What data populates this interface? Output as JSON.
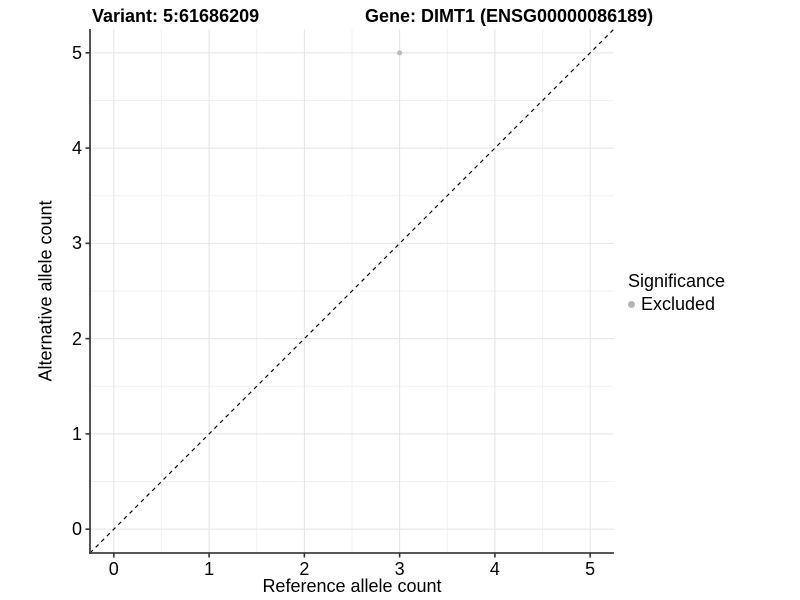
{
  "chart_data": {
    "type": "scatter",
    "title_left": "Variant: 5:61686209",
    "title_right": "Gene: DIMT1 (ENSG00000086189)",
    "xlabel": "Reference allele count",
    "ylabel": "Alternative allele count",
    "xlim": [
      -0.25,
      5.25
    ],
    "ylim": [
      -0.25,
      5.25
    ],
    "x_ticks": [
      0,
      1,
      2,
      3,
      4,
      5
    ],
    "y_ticks": [
      0,
      1,
      2,
      3,
      4,
      5
    ],
    "x_minor_ticks": [
      0.5,
      1.5,
      2.5,
      3.5,
      4.5
    ],
    "y_minor_ticks": [
      0.5,
      1.5,
      2.5,
      3.5,
      4.5
    ],
    "grid": true,
    "points": [
      {
        "x": 3,
        "y": 5,
        "series": "Excluded"
      }
    ],
    "abline": {
      "slope": 1,
      "intercept": 0,
      "style": "dashed"
    },
    "legend": {
      "title": "Significance",
      "position": "right",
      "entries": [
        {
          "label": "Excluded",
          "color": "#b5b5b5"
        }
      ]
    },
    "colors": {
      "point": "#bdbdbd",
      "grid_major": "#e4e4e4",
      "grid_minor": "#f1f1f1",
      "axis_line": "#404040",
      "tick_mark": "#333333",
      "diagonal": "#000000",
      "text": "#000000"
    }
  }
}
